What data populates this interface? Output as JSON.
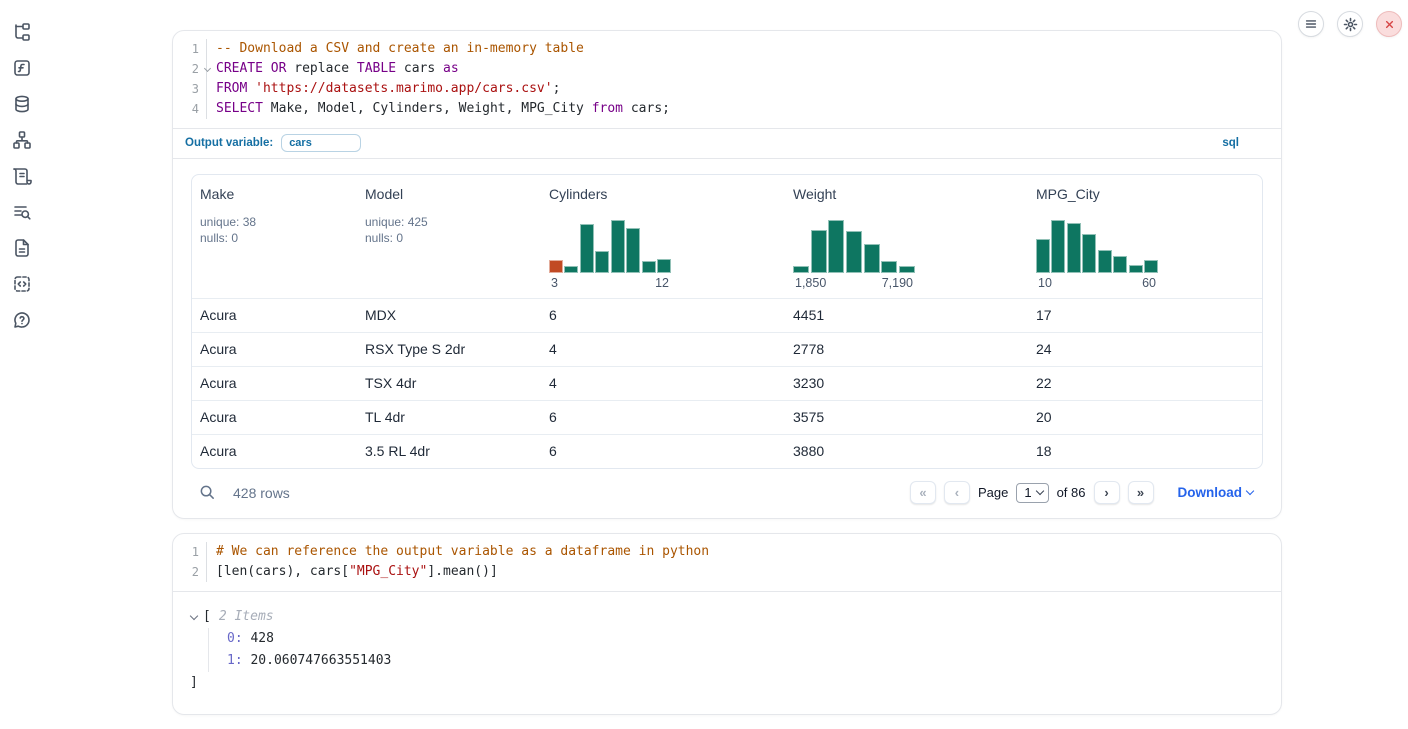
{
  "colors": {
    "accent_blue": "#156fa3",
    "link_blue": "#2563eb",
    "hist_green": "#0e7661",
    "hist_orange": "#c14a24",
    "keyword_purple": "#770088",
    "string_red": "#aa1111",
    "comment_brown": "#aa5500",
    "close_red": "#d64545"
  },
  "sidebar": {
    "icons": [
      "file-tree",
      "variables",
      "database",
      "dependency-graph",
      "scroll",
      "search-logs",
      "document",
      "snippets",
      "help"
    ]
  },
  "topbar": {
    "buttons": [
      "menu",
      "settings",
      "shutdown"
    ]
  },
  "sql_cell": {
    "language_label": "sql",
    "output_variable_label": "Output variable:",
    "output_variable_value": "cars",
    "code": {
      "line_numbers": [
        {
          "n": "1"
        },
        {
          "n": "2",
          "fold": true
        },
        {
          "n": "3"
        },
        {
          "n": "4"
        }
      ],
      "lines": [
        [
          {
            "t": "-- Download a CSV and create an in-memory table",
            "c": "com"
          }
        ],
        [
          {
            "t": "CREATE",
            "c": "kw"
          },
          {
            "t": " "
          },
          {
            "t": "OR",
            "c": "kw"
          },
          {
            "t": " replace "
          },
          {
            "t": "TABLE",
            "c": "kw"
          },
          {
            "t": " cars "
          },
          {
            "t": "as",
            "c": "kw"
          }
        ],
        [
          {
            "t": "FROM",
            "c": "kw"
          },
          {
            "t": " "
          },
          {
            "t": "'https://datasets.marimo.app/cars.csv'",
            "c": "str"
          },
          {
            "t": ";"
          }
        ],
        [
          {
            "t": "SELECT",
            "c": "kw"
          },
          {
            "t": " Make, Model, Cylinders, Weight, MPG_City "
          },
          {
            "t": "from",
            "c": "kw"
          },
          {
            "t": " cars;"
          }
        ]
      ]
    },
    "table": {
      "columns": [
        {
          "name": "Make",
          "stats": [
            "unique: 38",
            "nulls: 0"
          ]
        },
        {
          "name": "Model",
          "stats": [
            "unique: 425",
            "nulls: 0"
          ]
        },
        {
          "name": "Cylinders",
          "histogram": {
            "min_label": "3",
            "max_label": "12",
            "bars": [
              {
                "h": 0.25,
                "c": "orange"
              },
              {
                "h": 0.14
              },
              {
                "h": 0.93
              },
              {
                "h": 0.41
              },
              {
                "h": 1.0
              },
              {
                "h": 0.85
              },
              {
                "h": 0.23
              },
              {
                "h": 0.27
              }
            ]
          }
        },
        {
          "name": "Weight",
          "histogram": {
            "min_label": "1,850",
            "max_label": "7,190",
            "bars": [
              {
                "h": 0.14
              },
              {
                "h": 0.81
              },
              {
                "h": 1.0
              },
              {
                "h": 0.8
              },
              {
                "h": 0.54
              },
              {
                "h": 0.22
              },
              {
                "h": 0.14
              }
            ]
          }
        },
        {
          "name": "MPG_City",
          "histogram": {
            "min_label": "10",
            "max_label": "60",
            "bars": [
              {
                "h": 0.65
              },
              {
                "h": 1.0
              },
              {
                "h": 0.94
              },
              {
                "h": 0.73
              },
              {
                "h": 0.43
              },
              {
                "h": 0.32
              },
              {
                "h": 0.16
              },
              {
                "h": 0.24
              }
            ]
          }
        }
      ],
      "rows": [
        [
          "Acura",
          "MDX",
          "6",
          "4451",
          "17"
        ],
        [
          "Acura",
          "RSX Type S 2dr",
          "4",
          "2778",
          "24"
        ],
        [
          "Acura",
          "TSX 4dr",
          "4",
          "3230",
          "22"
        ],
        [
          "Acura",
          "TL 4dr",
          "6",
          "3575",
          "20"
        ],
        [
          "Acura",
          "3.5 RL 4dr",
          "6",
          "3880",
          "18"
        ]
      ],
      "footer": {
        "rows_label": "428 rows",
        "first_btn": "«",
        "prev_btn": "‹",
        "next_btn": "›",
        "last_btn": "»",
        "page_label": "Page",
        "page_value": "1",
        "of_label": "of 86",
        "download_label": "Download"
      }
    }
  },
  "python_cell": {
    "code": {
      "line_numbers": [
        {
          "n": "1"
        },
        {
          "n": "2"
        }
      ],
      "lines": [
        [
          {
            "t": "# We can reference the output variable as a dataframe in python",
            "c": "com"
          }
        ],
        [
          {
            "t": "[len(cars), cars["
          },
          {
            "t": "\"MPG_City\"",
            "c": "str"
          },
          {
            "t": "].mean()]"
          }
        ]
      ]
    },
    "output": {
      "bracket_open": "[",
      "items_label": "2 Items",
      "entries": [
        {
          "key": "0:",
          "value": "428"
        },
        {
          "key": "1:",
          "value": "20.060747663551403"
        }
      ],
      "bracket_close": "]"
    }
  }
}
